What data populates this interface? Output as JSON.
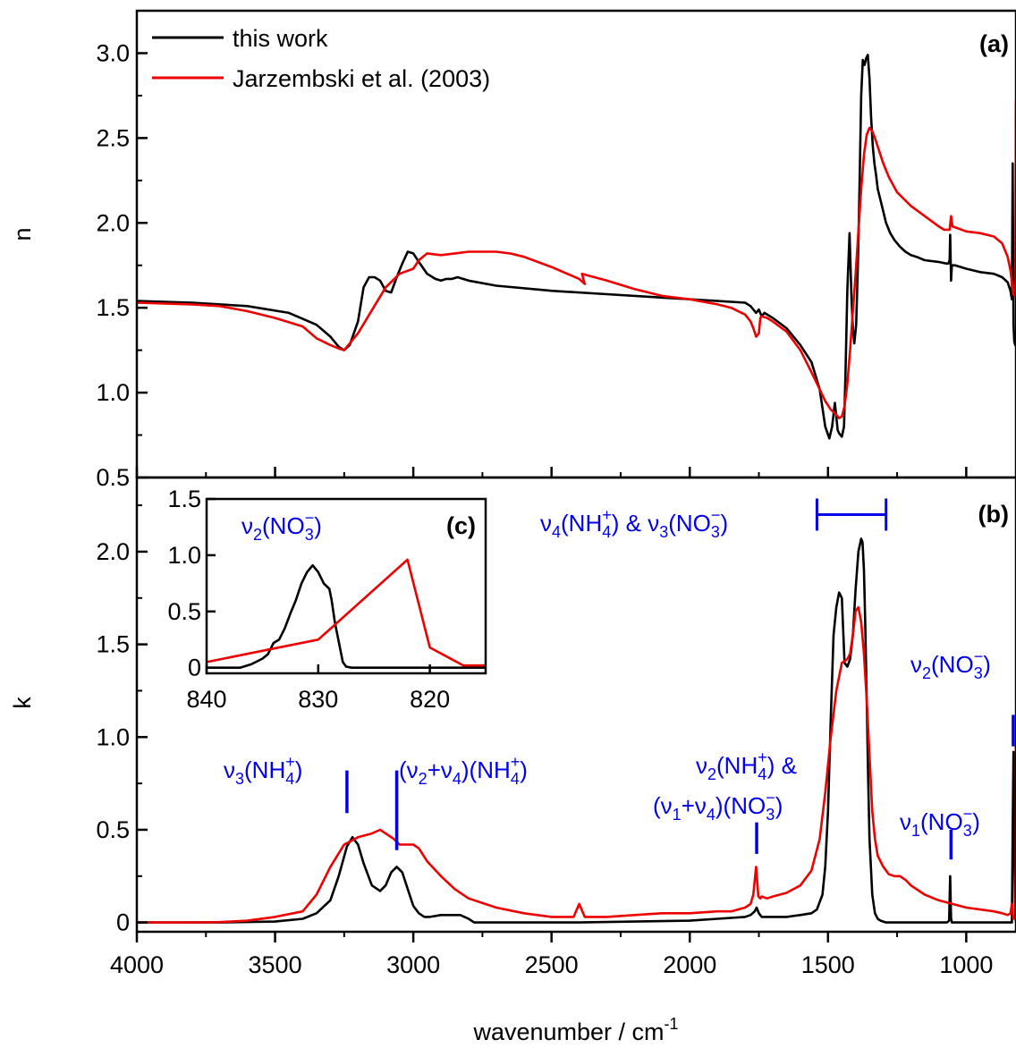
{
  "chart_data": [
    {
      "panel": "a",
      "type": "line",
      "tag": "(a)",
      "xlabel": "wavenumber / cm-1",
      "ylabel": "n",
      "xlim": [
        4000,
        820
      ],
      "ylim": [
        0.5,
        3.25
      ],
      "yticks": [
        "0.5",
        "1.0",
        "1.5",
        "2.0",
        "2.5",
        "3.0"
      ],
      "ytick_values": [
        0.5,
        1.0,
        1.5,
        2.0,
        2.5,
        3.0
      ],
      "grid": false,
      "legend_position": "top-left",
      "series": [
        {
          "name": "this work",
          "color": "#000000",
          "x": [
            4000,
            3800,
            3600,
            3450,
            3350,
            3300,
            3270,
            3250,
            3230,
            3200,
            3180,
            3160,
            3140,
            3120,
            3100,
            3080,
            3060,
            3040,
            3020,
            3000,
            2980,
            2950,
            2920,
            2900,
            2880,
            2860,
            2840,
            2800,
            2700,
            2500,
            2300,
            2100,
            1900,
            1800,
            1780,
            1760,
            1750,
            1740,
            1730,
            1700,
            1650,
            1600,
            1560,
            1530,
            1510,
            1495,
            1485,
            1475,
            1465,
            1460,
            1450,
            1442,
            1437,
            1430,
            1422,
            1415,
            1410,
            1405,
            1398,
            1392,
            1386,
            1380,
            1374,
            1368,
            1362,
            1356,
            1350,
            1344,
            1338,
            1332,
            1326,
            1320,
            1305,
            1290,
            1275,
            1260,
            1240,
            1220,
            1200,
            1180,
            1150,
            1100,
            1070,
            1065,
            1060,
            1058,
            1055,
            1052,
            1048,
            1040,
            1000,
            950,
            900,
            870,
            850,
            840,
            835,
            832,
            829,
            826,
            823,
            820
          ],
          "y": [
            1.54,
            1.53,
            1.51,
            1.47,
            1.4,
            1.33,
            1.27,
            1.25,
            1.28,
            1.42,
            1.62,
            1.68,
            1.68,
            1.66,
            1.6,
            1.59,
            1.68,
            1.76,
            1.83,
            1.82,
            1.77,
            1.7,
            1.67,
            1.66,
            1.67,
            1.67,
            1.68,
            1.66,
            1.63,
            1.6,
            1.58,
            1.56,
            1.54,
            1.53,
            1.51,
            1.47,
            1.49,
            1.45,
            1.47,
            1.44,
            1.38,
            1.28,
            1.18,
            1.02,
            0.8,
            0.73,
            0.8,
            0.94,
            0.78,
            0.76,
            0.74,
            0.8,
            1.1,
            1.6,
            1.94,
            1.55,
            1.38,
            1.29,
            1.4,
            1.75,
            2.2,
            2.75,
            2.96,
            2.93,
            2.97,
            2.99,
            2.85,
            2.62,
            2.45,
            2.35,
            2.28,
            2.2,
            2.1,
            2.0,
            1.94,
            1.9,
            1.86,
            1.83,
            1.81,
            1.8,
            1.78,
            1.77,
            1.76,
            1.76,
            1.78,
            1.93,
            1.66,
            1.75,
            1.75,
            1.75,
            1.73,
            1.71,
            1.7,
            1.68,
            1.65,
            1.6,
            1.55,
            2.35,
            1.4,
            1.3,
            1.28,
            1.3
          ]
        },
        {
          "name": "Jarzembski et al. (2003)",
          "color": "#ee0000",
          "x": [
            4000,
            3800,
            3700,
            3600,
            3500,
            3400,
            3350,
            3300,
            3270,
            3250,
            3200,
            3100,
            3050,
            3000,
            2980,
            2950,
            2900,
            2850,
            2800,
            2750,
            2700,
            2650,
            2600,
            2500,
            2400,
            2380,
            2390,
            2300,
            2200,
            2100,
            2000,
            1900,
            1850,
            1800,
            1780,
            1770,
            1760,
            1750,
            1745,
            1740,
            1720,
            1700,
            1650,
            1600,
            1560,
            1530,
            1510,
            1490,
            1470,
            1460,
            1450,
            1440,
            1430,
            1420,
            1410,
            1400,
            1390,
            1380,
            1370,
            1360,
            1350,
            1340,
            1330,
            1320,
            1300,
            1280,
            1250,
            1200,
            1150,
            1100,
            1080,
            1060,
            1055,
            1050,
            1000,
            950,
            900,
            870,
            860,
            850,
            840,
            835,
            830,
            825,
            822,
            820
          ],
          "y": [
            1.53,
            1.52,
            1.51,
            1.48,
            1.44,
            1.39,
            1.32,
            1.28,
            1.26,
            1.25,
            1.35,
            1.62,
            1.7,
            1.73,
            1.78,
            1.82,
            1.81,
            1.82,
            1.83,
            1.83,
            1.83,
            1.82,
            1.8,
            1.74,
            1.67,
            1.64,
            1.7,
            1.66,
            1.61,
            1.57,
            1.55,
            1.52,
            1.5,
            1.46,
            1.42,
            1.38,
            1.33,
            1.35,
            1.44,
            1.45,
            1.44,
            1.42,
            1.36,
            1.25,
            1.12,
            1.02,
            0.95,
            0.9,
            0.87,
            0.85,
            0.86,
            0.92,
            1.05,
            1.25,
            1.48,
            1.7,
            1.95,
            2.2,
            2.4,
            2.52,
            2.56,
            2.54,
            2.5,
            2.45,
            2.35,
            2.27,
            2.18,
            2.1,
            2.04,
            1.98,
            1.96,
            1.96,
            2.04,
            1.98,
            1.95,
            1.94,
            1.92,
            1.88,
            1.84,
            1.8,
            1.72,
            1.65,
            1.58,
            1.57,
            1.7,
            2.72
          ]
        }
      ]
    },
    {
      "panel": "b",
      "type": "line",
      "tag": "(b)",
      "xlabel": "wavenumber / cm-1",
      "ylabel": "k",
      "xlim": [
        4000,
        820
      ],
      "ylim": [
        -0.05,
        2.4
      ],
      "xticks": [
        "4000",
        "3500",
        "3000",
        "2500",
        "2000",
        "1500",
        "1000"
      ],
      "xtick_values": [
        4000,
        3500,
        3000,
        2500,
        2000,
        1500,
        1000
      ],
      "yticks": [
        "0",
        "0.5",
        "1.0",
        "1.5",
        "2.0"
      ],
      "ytick_values": [
        0,
        0.5,
        1.0,
        1.5,
        2.0
      ],
      "grid": false,
      "series": [
        {
          "name": "this work",
          "color": "#000000",
          "x": [
            4000,
            3700,
            3500,
            3400,
            3350,
            3300,
            3270,
            3240,
            3220,
            3200,
            3180,
            3150,
            3120,
            3100,
            3080,
            3060,
            3040,
            3020,
            3000,
            2980,
            2960,
            2940,
            2900,
            2860,
            2830,
            2800,
            2780,
            2600,
            2400,
            2200,
            2000,
            1900,
            1800,
            1780,
            1765,
            1758,
            1750,
            1740,
            1700,
            1650,
            1600,
            1560,
            1540,
            1520,
            1510,
            1500,
            1490,
            1480,
            1470,
            1460,
            1450,
            1440,
            1430,
            1420,
            1410,
            1400,
            1390,
            1380,
            1375,
            1370,
            1365,
            1360,
            1355,
            1350,
            1340,
            1330,
            1320,
            1310,
            1300,
            1290,
            1280,
            1250,
            1200,
            1100,
            1070,
            1062,
            1058,
            1055,
            1052,
            1048,
            1040,
            1000,
            900,
            850,
            835,
            832,
            829,
            826,
            823,
            820
          ],
          "y": [
            0.0,
            0.0,
            0.005,
            0.02,
            0.05,
            0.12,
            0.25,
            0.41,
            0.46,
            0.42,
            0.32,
            0.2,
            0.17,
            0.2,
            0.27,
            0.3,
            0.27,
            0.18,
            0.09,
            0.05,
            0.03,
            0.03,
            0.04,
            0.04,
            0.04,
            0.02,
            0.0,
            0.0,
            0.0,
            0.005,
            0.01,
            0.02,
            0.03,
            0.04,
            0.06,
            0.08,
            0.05,
            0.03,
            0.03,
            0.03,
            0.04,
            0.05,
            0.07,
            0.15,
            0.3,
            0.6,
            1.1,
            1.55,
            1.7,
            1.78,
            1.75,
            1.4,
            1.38,
            1.42,
            1.55,
            1.8,
            2.0,
            2.07,
            2.05,
            1.9,
            1.6,
            1.2,
            0.8,
            0.45,
            0.15,
            0.05,
            0.02,
            0.01,
            0.005,
            0.0,
            0.0,
            0.0,
            0.0,
            0.0,
            0.0,
            0.01,
            0.25,
            0.02,
            0.0,
            0.0,
            0.0,
            0.0,
            0.0,
            0.0,
            0.0,
            0.5,
            0.92,
            0.5,
            0.05,
            0.0
          ]
        },
        {
          "name": "Jarzembski et al. (2003)",
          "color": "#ee0000",
          "x": [
            4000,
            3800,
            3700,
            3600,
            3500,
            3400,
            3350,
            3300,
            3250,
            3200,
            3150,
            3120,
            3100,
            3070,
            3050,
            3000,
            2980,
            2950,
            2900,
            2850,
            2800,
            2700,
            2600,
            2500,
            2420,
            2400,
            2380,
            2300,
            2200,
            2100,
            2000,
            1900,
            1850,
            1800,
            1780,
            1770,
            1760,
            1752,
            1745,
            1740,
            1720,
            1700,
            1650,
            1600,
            1560,
            1530,
            1510,
            1490,
            1470,
            1450,
            1430,
            1420,
            1410,
            1400,
            1390,
            1380,
            1370,
            1360,
            1350,
            1340,
            1330,
            1320,
            1300,
            1280,
            1260,
            1240,
            1220,
            1200,
            1150,
            1100,
            1050,
            1000,
            950,
            900,
            870,
            850,
            840,
            835,
            830,
            822,
            820
          ],
          "y": [
            0.0,
            0.0,
            0.002,
            0.01,
            0.03,
            0.06,
            0.15,
            0.3,
            0.42,
            0.46,
            0.48,
            0.5,
            0.48,
            0.45,
            0.42,
            0.42,
            0.4,
            0.33,
            0.25,
            0.18,
            0.13,
            0.08,
            0.05,
            0.03,
            0.03,
            0.1,
            0.03,
            0.03,
            0.04,
            0.05,
            0.05,
            0.06,
            0.06,
            0.08,
            0.1,
            0.15,
            0.3,
            0.14,
            0.13,
            0.14,
            0.13,
            0.14,
            0.16,
            0.2,
            0.28,
            0.45,
            0.7,
            1.0,
            1.25,
            1.4,
            1.42,
            1.45,
            1.55,
            1.68,
            1.7,
            1.62,
            1.45,
            1.2,
            0.9,
            0.6,
            0.45,
            0.36,
            0.3,
            0.26,
            0.25,
            0.25,
            0.23,
            0.2,
            0.15,
            0.12,
            0.1,
            0.08,
            0.07,
            0.06,
            0.05,
            0.04,
            0.05,
            0.1,
            0.02,
            0.03,
            0.96
          ]
        }
      ],
      "annotations": [
        {
          "main": "ν",
          "sub1": "4",
          "mid1": "(NH",
          "sub2": "4",
          "sup2": "+",
          "rest": ") & ν",
          "sub3": "3",
          "mid3": "(NO",
          "sub4": "3",
          "sup4": "−",
          "end": ")"
        },
        {
          "label": "ν3(NH4+)",
          "marker_x": 3240
        },
        {
          "label": "(ν2+ν4)(NH4+)",
          "marker_x": 3060
        },
        {
          "label": "ν2(NH4+) &",
          "label2": "(ν1+ν4)(NO3−)",
          "marker_x": 1758
        },
        {
          "label": "ν1(NO3−)",
          "marker_x": 1055
        },
        {
          "label": "ν2(NO3−)",
          "marker_x": 830
        }
      ],
      "bracket": {
        "x_from": 1540,
        "x_to": 1290,
        "y": 2.2
      }
    },
    {
      "panel": "c",
      "type": "line",
      "tag": "(c)",
      "label": "ν2(NO3−)",
      "xlim": [
        840,
        815
      ],
      "ylim": [
        -0.05,
        1.5
      ],
      "xticks": [
        "840",
        "830",
        "820"
      ],
      "xtick_values": [
        840,
        830,
        820
      ],
      "yticks": [
        "0",
        "0.5",
        "1.0",
        "1.5"
      ],
      "ytick_values": [
        0,
        0.5,
        1.0,
        1.5
      ],
      "series": [
        {
          "color": "#000000",
          "x": [
            840,
            837,
            836,
            835,
            834.5,
            834,
            833.5,
            833,
            832.5,
            832,
            831.5,
            831,
            830.5,
            830,
            829.5,
            829,
            828.8,
            828.5,
            828,
            827.8,
            827.5,
            827,
            826,
            820,
            815
          ],
          "y": [
            0.0,
            0.0,
            0.03,
            0.08,
            0.12,
            0.22,
            0.25,
            0.35,
            0.48,
            0.6,
            0.75,
            0.85,
            0.91,
            0.85,
            0.75,
            0.7,
            0.6,
            0.4,
            0.15,
            0.05,
            0.01,
            0.0,
            0.0,
            0.0,
            0.0
          ]
        },
        {
          "color": "#ee0000",
          "x": [
            840,
            835,
            830,
            822,
            820,
            817,
            815
          ],
          "y": [
            0.05,
            0.15,
            0.25,
            0.96,
            0.18,
            0.02,
            0.02
          ]
        }
      ]
    }
  ]
}
